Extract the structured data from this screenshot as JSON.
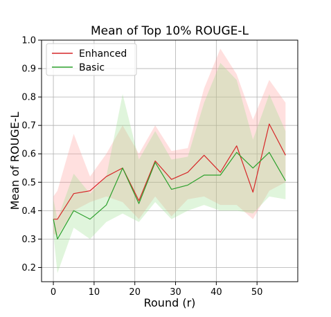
{
  "chart_data": {
    "type": "line",
    "title": "Mean of Top 10% ROUGE-L",
    "xlabel": "Round (r)",
    "ylabel": "Mean of ROUGE-L",
    "xlim": [
      -2.9,
      60
    ],
    "ylim": [
      0.15,
      1.0
    ],
    "xticks": [
      0,
      10,
      20,
      30,
      40,
      50
    ],
    "yticks": [
      0.2,
      0.3,
      0.4,
      0.5,
      0.6,
      0.7,
      0.8,
      0.9,
      1.0
    ],
    "xtick_labels": [
      "0",
      "10",
      "20",
      "30",
      "40",
      "50"
    ],
    "ytick_labels": [
      "0.2",
      "0.3",
      "0.4",
      "0.5",
      "0.6",
      "0.7",
      "0.8",
      "0.9",
      "1.0"
    ],
    "grid": true,
    "legend_position": "top-left",
    "x": [
      0,
      1,
      5,
      9,
      13,
      17,
      21,
      25,
      29,
      33,
      37,
      41,
      45,
      49,
      53,
      57
    ],
    "series": [
      {
        "name": "Enhanced",
        "color": "#d62728",
        "band_color": "#ff9896",
        "values": [
          0.37,
          0.37,
          0.46,
          0.47,
          0.52,
          0.55,
          0.435,
          0.575,
          0.51,
          0.535,
          0.595,
          0.535,
          0.628,
          0.465,
          0.705,
          0.595
        ],
        "upper": [
          0.45,
          0.47,
          0.67,
          0.52,
          0.6,
          0.7,
          0.6,
          0.7,
          0.61,
          0.62,
          0.83,
          0.97,
          0.88,
          0.72,
          0.86,
          0.78
        ],
        "lower": [
          0.32,
          0.31,
          0.4,
          0.43,
          0.45,
          0.43,
          0.37,
          0.45,
          0.38,
          0.44,
          0.45,
          0.42,
          0.42,
          0.37,
          0.47,
          0.5
        ]
      },
      {
        "name": "Basic",
        "color": "#2ca02c",
        "band_color": "#98df8a",
        "values": [
          0.37,
          0.3,
          0.4,
          0.37,
          0.42,
          0.55,
          0.425,
          0.57,
          0.475,
          0.49,
          0.525,
          0.525,
          0.605,
          0.55,
          0.605,
          0.505
        ],
        "upper": [
          0.44,
          0.37,
          0.53,
          0.46,
          0.52,
          0.81,
          0.58,
          0.68,
          0.58,
          0.59,
          0.78,
          0.92,
          0.86,
          0.65,
          0.81,
          0.68
        ],
        "lower": [
          0.32,
          0.18,
          0.34,
          0.3,
          0.36,
          0.39,
          0.36,
          0.43,
          0.37,
          0.4,
          0.42,
          0.4,
          0.4,
          0.39,
          0.45,
          0.44
        ]
      }
    ]
  }
}
